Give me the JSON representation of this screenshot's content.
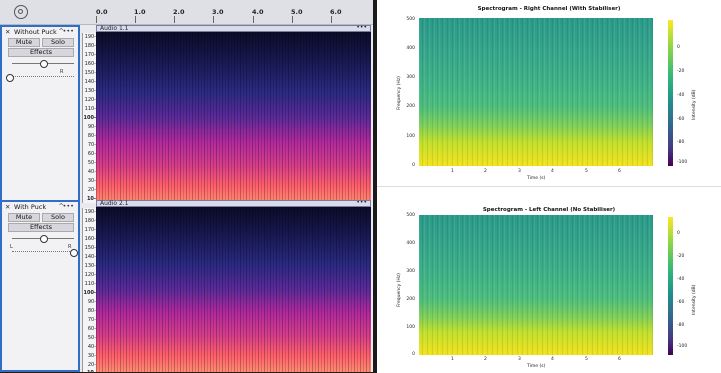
{
  "ruler": {
    "ticks": [
      "0.0",
      "1.0",
      "2.0",
      "3.0",
      "4.0",
      "5.0",
      "6.0"
    ]
  },
  "tracks": [
    {
      "name": "Without Puck",
      "mute": "Mute",
      "solo": "Solo",
      "effects": "Effects",
      "pan_left": "L",
      "pan_right": "R",
      "clip": "Audio 1.1",
      "clip_menu": "•••",
      "menu": "•••"
    },
    {
      "name": "With Puck",
      "mute": "Mute",
      "solo": "Solo",
      "effects": "Effects",
      "pan_left": "L",
      "pan_right": "R",
      "clip": "Audio 2.1",
      "clip_menu": "•••",
      "menu": "•••"
    }
  ],
  "scale_labels": [
    "190-",
    "180-",
    "170-",
    "160-",
    "150-",
    "140-",
    "130-",
    "120-",
    "110-",
    "100-",
    "90-",
    "80-",
    "70-",
    "60-",
    "50-",
    "40-",
    "30-",
    "20-",
    "10-"
  ],
  "panels": [
    {
      "title": "Spectrogram - Right Channel (With Stabiliser)",
      "ylabel": "Frequency (Hz)",
      "xlabel": "Time (s)",
      "colorbar_label": "Intensity (dB)",
      "yticks": [
        "500",
        "400",
        "300",
        "200",
        "100",
        "0"
      ],
      "xticks": [
        "1",
        "2",
        "3",
        "4",
        "5",
        "6"
      ],
      "cticks": [
        "0",
        "-20",
        "-40",
        "-60",
        "-80",
        "-100"
      ]
    },
    {
      "title": "Spectrogram - Left Channel (No Stabiliser)",
      "ylabel": "Frequency (Hz)",
      "xlabel": "Time (s)",
      "colorbar_label": "Intensity (dB)",
      "yticks": [
        "500",
        "400",
        "300",
        "200",
        "100",
        "0"
      ],
      "xticks": [
        "1",
        "2",
        "3",
        "4",
        "5",
        "6"
      ],
      "cticks": [
        "0",
        "-20",
        "-40",
        "-60",
        "-80",
        "-100"
      ]
    }
  ],
  "colors": {
    "selection_border": "#2f6fc9",
    "viridis_low": "#440154",
    "viridis_high": "#fde725"
  }
}
